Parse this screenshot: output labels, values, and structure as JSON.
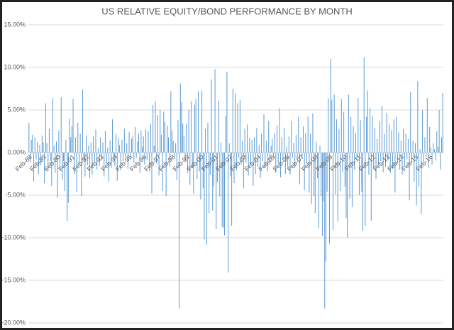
{
  "chart_data": {
    "type": "bar",
    "title": "US RELATIVE EQUITY/BOND PERFORMANCE BY MONTH",
    "color": "#5b9bd5",
    "grid": true,
    "ylim": [
      -20,
      15
    ],
    "yticks": [
      {
        "value": -20,
        "label": "-20.00%"
      },
      {
        "value": -15,
        "label": "-15.00%"
      },
      {
        "value": -10,
        "label": "-10.00%"
      },
      {
        "value": -5,
        "label": "-5.00%"
      },
      {
        "value": 0,
        "label": "0.00%"
      },
      {
        "value": 5,
        "label": "5.00%"
      },
      {
        "value": 10,
        "label": "10.00%"
      },
      {
        "value": 15,
        "label": "15.00%"
      }
    ],
    "categories": [
      "Feb-88",
      null,
      null,
      null,
      null,
      null,
      null,
      null,
      null,
      null,
      null,
      null,
      "Feb-89",
      null,
      null,
      null,
      null,
      null,
      null,
      null,
      null,
      null,
      null,
      null,
      "Feb-90",
      null,
      null,
      null,
      null,
      null,
      null,
      null,
      null,
      null,
      null,
      null,
      "Feb-91",
      null,
      null,
      null,
      null,
      null,
      null,
      null,
      null,
      null,
      null,
      null,
      "Feb-92",
      null,
      null,
      null,
      null,
      null,
      null,
      null,
      null,
      null,
      null,
      null,
      "Feb-93",
      null,
      null,
      null,
      null,
      null,
      null,
      null,
      null,
      null,
      null,
      null,
      "Feb-94",
      null,
      null,
      null,
      null,
      null,
      null,
      null,
      null,
      null,
      null,
      null,
      "Feb-95",
      null,
      null,
      null,
      null,
      null,
      null,
      null,
      null,
      null,
      null,
      null,
      "Feb-96",
      null,
      null,
      null,
      null,
      null,
      null,
      null,
      null,
      null,
      null,
      null,
      "Feb-97",
      null,
      null,
      null,
      null,
      null,
      null,
      null,
      null,
      null,
      null,
      null,
      "Feb-98",
      null,
      null,
      null,
      null,
      null,
      null,
      null,
      null,
      null,
      null,
      null,
      "Feb-99",
      null,
      null,
      null,
      null,
      null,
      null,
      null,
      null,
      null,
      null,
      null,
      "Feb-00",
      null,
      null,
      null,
      null,
      null,
      null,
      null,
      null,
      null,
      null,
      null,
      "Feb-01",
      null,
      null,
      null,
      null,
      null,
      null,
      null,
      null,
      null,
      null,
      null,
      "Feb-02",
      null,
      null,
      null,
      null,
      null,
      null,
      null,
      null,
      null,
      null,
      null,
      "Feb-03",
      null,
      null,
      null,
      null,
      null,
      null,
      null,
      null,
      null,
      null,
      null,
      "Feb-04",
      null,
      null,
      null,
      null,
      null,
      null,
      null,
      null,
      null,
      null,
      null,
      "Feb-05",
      null,
      null,
      null,
      null,
      null,
      null,
      null,
      null,
      null,
      null,
      null,
      "Feb-06",
      null,
      null,
      null,
      null,
      null,
      null,
      null,
      null,
      null,
      null,
      null,
      "Feb-07",
      null,
      null,
      null,
      null,
      null,
      null,
      null,
      null,
      null,
      null,
      null,
      "Feb-08",
      null,
      null,
      null,
      null,
      null,
      null,
      null,
      null,
      null,
      null,
      null,
      "Feb-09",
      null,
      null,
      null,
      null,
      null,
      null,
      null,
      null,
      null,
      null,
      null,
      "Feb-10",
      null,
      null,
      null,
      null,
      null,
      null,
      null,
      null,
      null,
      null,
      null,
      "Feb-11",
      null,
      null,
      null,
      null,
      null,
      null,
      null,
      null,
      null,
      null,
      null,
      "Feb-12",
      null,
      null,
      null,
      null,
      null,
      null,
      null,
      null,
      null,
      null,
      null,
      "Feb-13",
      null,
      null,
      null,
      null,
      null,
      null,
      null,
      null,
      null,
      null,
      null,
      "Feb-14",
      null,
      null,
      null,
      null,
      null,
      null,
      null,
      null,
      null,
      null,
      null,
      "Feb-15",
      null,
      null,
      null,
      null,
      null,
      null,
      null,
      null,
      null,
      null,
      null,
      "Feb-16",
      null,
      null,
      null,
      null,
      null,
      null,
      null,
      null,
      null,
      null,
      null
    ],
    "values": [
      3.5,
      -1.2,
      1.5,
      2.1,
      -3.4,
      1.8,
      -0.8,
      1.2,
      -2.5,
      0.9,
      -1.5,
      2.0,
      1.2,
      -3.6,
      5.8,
      1.1,
      -2.2,
      2.8,
      -1.0,
      -3.9,
      6.4,
      0.8,
      -2.4,
      1.3,
      -5.3,
      2.6,
      -1.8,
      6.5,
      -3.2,
      -1.0,
      -4.5,
      1.5,
      -8.0,
      -5.9,
      4.0,
      1.8,
      3.1,
      6.3,
      -2.5,
      1.8,
      -4.6,
      3.5,
      -1.2,
      2.2,
      -5.1,
      7.4,
      -0.9,
      -2.8,
      2.0,
      -1.5,
      0.8,
      -3.0,
      1.2,
      -2.6,
      1.9,
      -1.1,
      2.7,
      -2.0,
      0.5,
      -1.6,
      1.8,
      -0.9,
      1.2,
      -2.8,
      2.5,
      -1.3,
      0.6,
      -3.4,
      1.4,
      -1.8,
      3.9,
      -0.7,
      -1.6,
      2.2,
      -3.3,
      1.7,
      0.9,
      -2.1,
      1.5,
      -1.0,
      2.8,
      -0.5,
      1.1,
      -1.9,
      2.4,
      -0.8,
      1.6,
      1.9,
      -1.2,
      3.0,
      -0.6,
      1.3,
      2.2,
      -2.4,
      2.6,
      0.7,
      1.9,
      -1.4,
      2.8,
      -0.9,
      2.5,
      -2.2,
      3.4,
      -4.8,
      5.6,
      0.8,
      6.0,
      -1.3,
      4.4,
      -2.7,
      5.0,
      2.1,
      -4.5,
      4.8,
      3.6,
      -5.1,
      3.2,
      1.8,
      -1.6,
      7.2,
      2.6,
      1.4,
      -0.7,
      1.1,
      -3.2,
      3.8,
      -18.3,
      8.1,
      5.9,
      3.4,
      2.0,
      -1.0,
      3.4,
      -2.4,
      5.0,
      -3.8,
      6.0,
      -1.8,
      -4.8,
      5.6,
      6.3,
      -3.1,
      7.2,
      -2.2,
      -5.5,
      7.3,
      -4.2,
      -10.2,
      2.8,
      -10.8,
      3.5,
      -7.1,
      -2.6,
      8.6,
      -6.8,
      -4.0,
      9.8,
      -9.0,
      -3.5,
      6.1,
      -5.2,
      1.2,
      -8.7,
      -8.9,
      -9.7,
      4.3,
      9.5,
      -14.1,
      1.1,
      -2.8,
      -8.6,
      7.5,
      -3.6,
      6.9,
      -2.1,
      5.8,
      -0.6,
      6.2,
      -1.4,
      1.4,
      -4.2,
      2.8,
      -1.2,
      3.3,
      -2.7,
      1.7,
      -1.3,
      1.5,
      -3.9,
      1.8,
      -2.5,
      2.9,
      -1.7,
      0.9,
      -3.0,
      2.2,
      -1.0,
      4.5,
      -1.8,
      1.4,
      -2.2,
      3.7,
      -1.4,
      0.8,
      1.6,
      -0.6,
      2.3,
      -2.4,
      3.2,
      -1.2,
      5.2,
      -2.9,
      1.8,
      -0.8,
      2.9,
      -2.5,
      0.7,
      -1.7,
      1.9,
      -2.6,
      3.7,
      -0.6,
      1.1,
      -1.8,
      2.1,
      -0.9,
      4.2,
      -3.7,
      1.8,
      -0.6,
      3.1,
      -4.4,
      2.3,
      -1.2,
      4.2,
      -4.7,
      2.2,
      -6.0,
      4.6,
      -5.1,
      -7.1,
      1.3,
      -3.0,
      -8.9,
      0.8,
      -5.1,
      -9.8,
      -5.7,
      -18.3,
      -12.8,
      -4.6,
      6.4,
      -10.7,
      11.0,
      6.2,
      -9.1,
      6.8,
      -4.9,
      3.9,
      -8.1,
      2.8,
      -4.5,
      6.3,
      -2.3,
      4.8,
      -4.0,
      -7.7,
      -10.0,
      6.8,
      -5.4,
      4.2,
      -6.4,
      3.1,
      -2.0,
      2.3,
      -0.8,
      6.4,
      -5.0,
      3.8,
      -4.6,
      -9.2,
      11.2,
      -8.6,
      4.2,
      7.3,
      -2.6,
      5.2,
      -8.0,
      4.3,
      -1.8,
      2.9,
      -3.1,
      1.6,
      -1.4,
      3.7,
      -1.0,
      5.5,
      -2.3,
      2.2,
      -1.7,
      4.6,
      -0.9,
      3.3,
      -2.4,
      2.6,
      -1.9,
      3.9,
      -4.7,
      4.2,
      -1.3,
      2.4,
      -2.0,
      1.4,
      -2.6,
      2.8,
      -1.6,
      2.2,
      -0.8,
      1.6,
      -5.6,
      7.1,
      -1.2,
      1.4,
      -3.4,
      1.1,
      -6.2,
      8.4,
      -4.0,
      0.4,
      -7.2,
      5.0,
      -1.1,
      1.8,
      -0.5,
      6.4,
      -1.8,
      3.0,
      0.6,
      -1.4,
      1.1,
      0.4,
      -0.9,
      2.5,
      0.7,
      5.0,
      -2.0,
      1.8,
      7.0
    ]
  }
}
